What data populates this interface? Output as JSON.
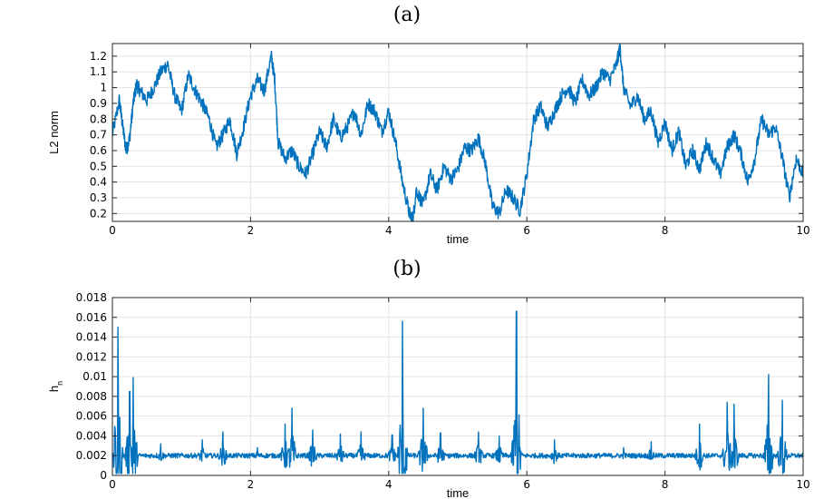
{
  "chart_data": [
    {
      "type": "line",
      "panel_label": "(a)",
      "xlabel": "time",
      "ylabel": "L2 norm",
      "xlim": [
        0,
        10
      ],
      "ylim": [
        0.15,
        1.28
      ],
      "xticks": [
        0,
        2,
        4,
        6,
        8,
        10
      ],
      "yticks": [
        0.2,
        0.3,
        0.4,
        0.5,
        0.6,
        0.7,
        0.8,
        0.9,
        1,
        1.1,
        1.2
      ],
      "ytick_labels": [
        "0.2",
        "0.3",
        "0.4",
        "0.5",
        "0.6",
        "0.7",
        "0.8",
        "0.9",
        "1",
        "1.1",
        "1.2"
      ],
      "grid": true,
      "color": "#0072BD",
      "series": [
        {
          "x": [
            0,
            0.1,
            0.15,
            0.2,
            0.25,
            0.3,
            0.35,
            0.4,
            0.5,
            0.6,
            0.7,
            0.8,
            0.9,
            1.0,
            1.1,
            1.2,
            1.3,
            1.4,
            1.5,
            1.6,
            1.7,
            1.8,
            1.9,
            2.0,
            2.1,
            2.2,
            2.3,
            2.35,
            2.4,
            2.5,
            2.6,
            2.7,
            2.8,
            2.9,
            3.0,
            3.1,
            3.2,
            3.3,
            3.4,
            3.5,
            3.6,
            3.7,
            3.8,
            3.9,
            4.0,
            4.1,
            4.2,
            4.3,
            4.35,
            4.4,
            4.5,
            4.6,
            4.7,
            4.8,
            4.9,
            5.0,
            5.1,
            5.2,
            5.3,
            5.4,
            5.5,
            5.6,
            5.7,
            5.8,
            5.9,
            6.0,
            6.1,
            6.2,
            6.3,
            6.4,
            6.5,
            6.6,
            6.7,
            6.8,
            6.9,
            7.0,
            7.1,
            7.2,
            7.3,
            7.35,
            7.4,
            7.5,
            7.6,
            7.7,
            7.8,
            7.9,
            8.0,
            8.1,
            8.2,
            8.3,
            8.4,
            8.5,
            8.6,
            8.7,
            8.8,
            8.9,
            9.0,
            9.1,
            9.2,
            9.3,
            9.4,
            9.5,
            9.6,
            9.7,
            9.8,
            9.9,
            10.0
          ],
          "y": [
            0.7,
            0.92,
            0.75,
            0.6,
            0.68,
            0.9,
            1.02,
            0.98,
            0.92,
            1.0,
            1.1,
            1.15,
            0.95,
            0.85,
            1.08,
            0.98,
            0.9,
            0.8,
            0.62,
            0.7,
            0.8,
            0.58,
            0.75,
            0.95,
            1.05,
            0.98,
            1.2,
            1.05,
            0.65,
            0.55,
            0.6,
            0.5,
            0.45,
            0.58,
            0.72,
            0.62,
            0.8,
            0.68,
            0.75,
            0.85,
            0.7,
            0.9,
            0.85,
            0.72,
            0.85,
            0.65,
            0.4,
            0.2,
            0.16,
            0.35,
            0.25,
            0.45,
            0.35,
            0.5,
            0.42,
            0.48,
            0.62,
            0.6,
            0.68,
            0.52,
            0.25,
            0.2,
            0.35,
            0.3,
            0.22,
            0.45,
            0.8,
            0.88,
            0.75,
            0.85,
            0.95,
            1.0,
            0.9,
            1.05,
            0.95,
            1.0,
            1.1,
            1.05,
            1.15,
            1.26,
            1.0,
            0.88,
            0.95,
            0.8,
            0.85,
            0.65,
            0.78,
            0.6,
            0.72,
            0.5,
            0.6,
            0.48,
            0.65,
            0.55,
            0.45,
            0.62,
            0.7,
            0.58,
            0.4,
            0.55,
            0.8,
            0.7,
            0.75,
            0.55,
            0.3,
            0.55,
            0.45
          ]
        }
      ]
    },
    {
      "type": "line",
      "panel_label": "(b)",
      "xlabel": "time",
      "ylabel": "h",
      "ylabel_subscript": "n",
      "xlim": [
        0,
        10
      ],
      "ylim": [
        0,
        0.018
      ],
      "xticks": [
        0,
        2,
        4,
        6,
        8,
        10
      ],
      "yticks": [
        0,
        0.002,
        0.004,
        0.006,
        0.008,
        0.01,
        0.012,
        0.014,
        0.016,
        0.018
      ],
      "ytick_labels": [
        "0",
        "0.002",
        "0.004",
        "0.006",
        "0.008",
        "0.01",
        "0.012",
        "0.014",
        "0.016",
        "0.018"
      ],
      "grid": true,
      "color": "#0072BD",
      "baseline": 0.002,
      "spikes": [
        {
          "x": 0.08,
          "y": 0.015
        },
        {
          "x": 0.25,
          "y": 0.0085
        },
        {
          "x": 0.3,
          "y": 0.0099
        },
        {
          "x": 0.7,
          "y": 0.0032
        },
        {
          "x": 1.3,
          "y": 0.0036
        },
        {
          "x": 1.6,
          "y": 0.0044
        },
        {
          "x": 2.1,
          "y": 0.0028
        },
        {
          "x": 2.5,
          "y": 0.0052
        },
        {
          "x": 2.6,
          "y": 0.0068
        },
        {
          "x": 2.9,
          "y": 0.0046
        },
        {
          "x": 3.3,
          "y": 0.0042
        },
        {
          "x": 3.6,
          "y": 0.0044
        },
        {
          "x": 4.05,
          "y": 0.0041
        },
        {
          "x": 4.2,
          "y": 0.0156
        },
        {
          "x": 4.5,
          "y": 0.0068
        },
        {
          "x": 4.75,
          "y": 0.0043
        },
        {
          "x": 5.3,
          "y": 0.0044
        },
        {
          "x": 5.6,
          "y": 0.004
        },
        {
          "x": 5.85,
          "y": 0.0166
        },
        {
          "x": 6.4,
          "y": 0.0036
        },
        {
          "x": 7.4,
          "y": 0.0028
        },
        {
          "x": 7.8,
          "y": 0.0034
        },
        {
          "x": 8.5,
          "y": 0.0052
        },
        {
          "x": 8.9,
          "y": 0.0074
        },
        {
          "x": 9.0,
          "y": 0.0072
        },
        {
          "x": 9.5,
          "y": 0.0102
        },
        {
          "x": 9.7,
          "y": 0.0076
        }
      ]
    }
  ]
}
